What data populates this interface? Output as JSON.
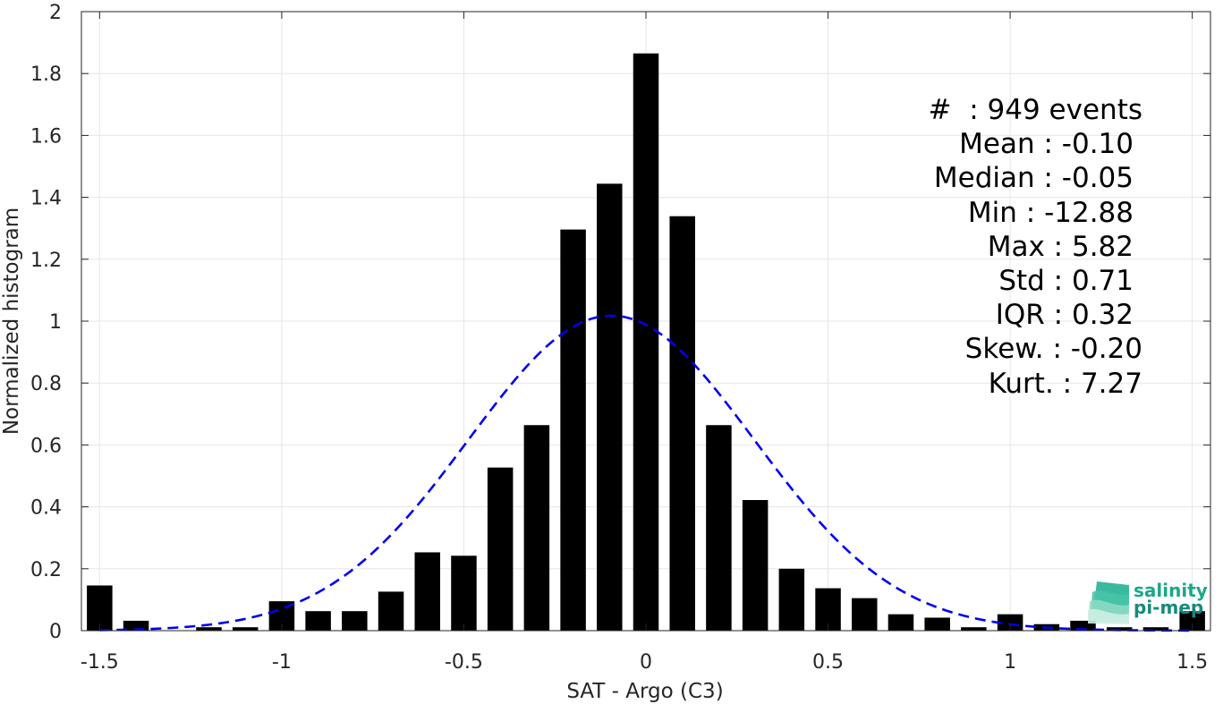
{
  "chart_data": {
    "type": "bar",
    "xlabel": "SAT - Argo (C3)",
    "ylabel": "Normalized histogram",
    "xlim": [
      -1.55,
      1.55
    ],
    "ylim": [
      0,
      2
    ],
    "xticks": [
      -1.5,
      -1,
      -0.5,
      0,
      0.5,
      1,
      1.5
    ],
    "xtick_labels": [
      "-1.5",
      "-1",
      "-0.5",
      "0",
      "0.5",
      "1",
      "1.5"
    ],
    "yticks": [
      0,
      0.2,
      0.4,
      0.6,
      0.8,
      1,
      1.2,
      1.4,
      1.6,
      1.8,
      2
    ],
    "ytick_labels": [
      "0",
      "0.2",
      "0.4",
      "0.6",
      "0.8",
      "1",
      "1.2",
      "1.4",
      "1.6",
      "1.8",
      "2"
    ],
    "grid": true,
    "bar_width": 0.07,
    "bar_color": "#000000",
    "bins": [
      {
        "x": -1.5,
        "y": 0.146
      },
      {
        "x": -1.4,
        "y": 0.032
      },
      {
        "x": -1.3,
        "y": 0.0
      },
      {
        "x": -1.2,
        "y": 0.011
      },
      {
        "x": -1.1,
        "y": 0.011
      },
      {
        "x": -1.0,
        "y": 0.095
      },
      {
        "x": -0.9,
        "y": 0.063
      },
      {
        "x": -0.8,
        "y": 0.063
      },
      {
        "x": -0.7,
        "y": 0.126
      },
      {
        "x": -0.6,
        "y": 0.253
      },
      {
        "x": -0.5,
        "y": 0.242
      },
      {
        "x": -0.4,
        "y": 0.527
      },
      {
        "x": -0.3,
        "y": 0.664
      },
      {
        "x": -0.2,
        "y": 1.296
      },
      {
        "x": -0.1,
        "y": 1.444
      },
      {
        "x": 0.0,
        "y": 1.865
      },
      {
        "x": 0.1,
        "y": 1.339
      },
      {
        "x": 0.2,
        "y": 0.664
      },
      {
        "x": 0.3,
        "y": 0.422
      },
      {
        "x": 0.4,
        "y": 0.2
      },
      {
        "x": 0.5,
        "y": 0.137
      },
      {
        "x": 0.6,
        "y": 0.105
      },
      {
        "x": 0.7,
        "y": 0.053
      },
      {
        "x": 0.8,
        "y": 0.042
      },
      {
        "x": 0.9,
        "y": 0.011
      },
      {
        "x": 1.0,
        "y": 0.053
      },
      {
        "x": 1.1,
        "y": 0.021
      },
      {
        "x": 1.2,
        "y": 0.032
      },
      {
        "x": 1.3,
        "y": 0.011
      },
      {
        "x": 1.4,
        "y": 0.011
      },
      {
        "x": 1.5,
        "y": 0.063
      }
    ],
    "fit_curve": {
      "type": "gaussian",
      "style": "dashed",
      "color": "#0000ee",
      "mean": -0.095,
      "sigma": 0.392,
      "x_range": [
        -1.5,
        1.5
      ]
    }
  },
  "stats": {
    "line1": "#  : 949 events",
    "line2": "Mean : -0.10",
    "line3": "Median : -0.05",
    "line4": "Min : -12.88",
    "line5": "Max : 5.82",
    "line6": "Std : 0.71",
    "line7": "IQR : 0.32",
    "line8": "Skew. : -0.20",
    "line9": "Kurt. : 7.27"
  },
  "logo": {
    "line1": "salinity",
    "line2": "pi-mep",
    "color1": "#1aa887",
    "color2": "#178a7d"
  },
  "colors": {
    "grid": "#e6e6e6",
    "axis": "#262626"
  }
}
